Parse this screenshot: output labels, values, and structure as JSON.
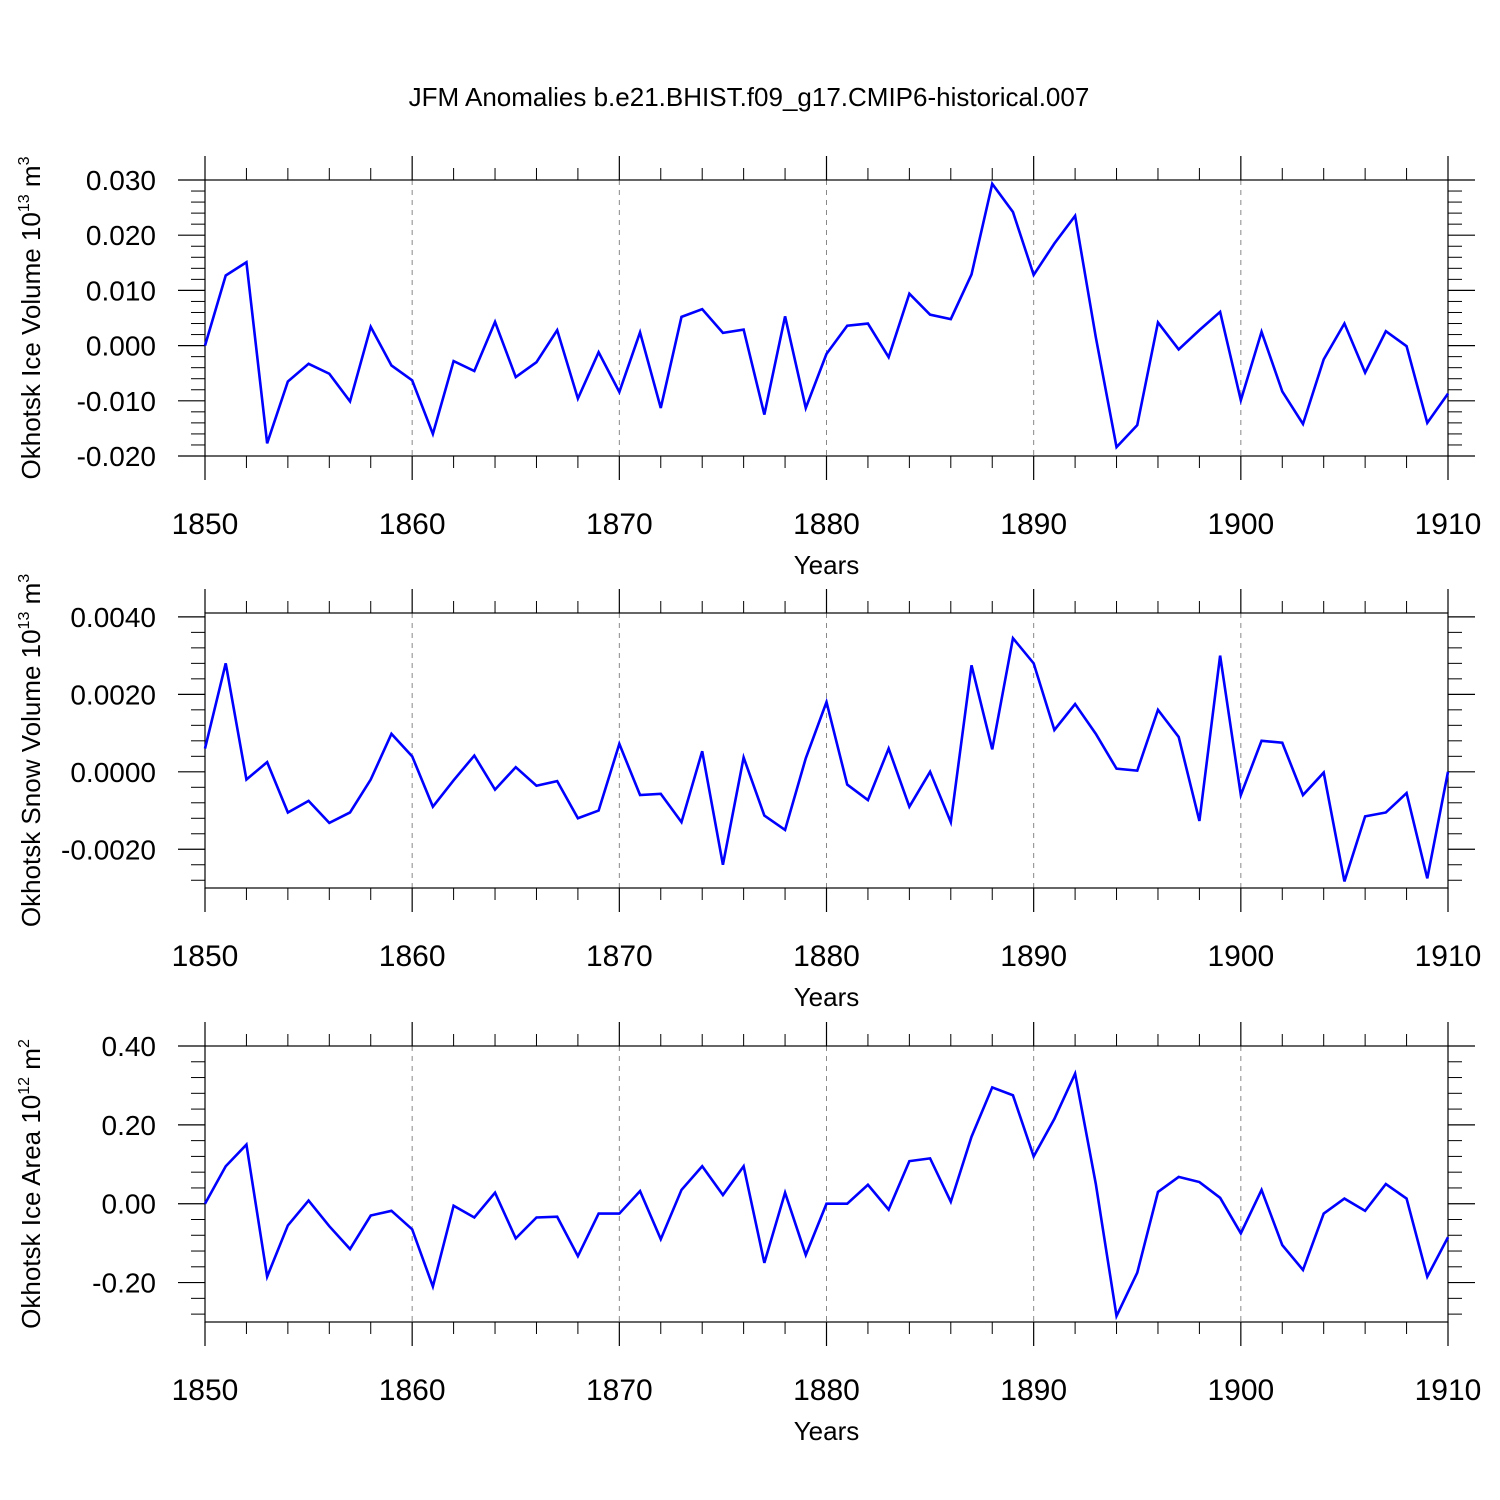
{
  "figure": {
    "title": "JFM Anomalies b.e21.BHIST.f09_g17.CMIP6-historical.007"
  },
  "chart_data": [
    {
      "type": "line",
      "xlabel": "Years",
      "ylabel": "Okhotsk Ice Volume 10",
      "ylabel_exp": "13",
      "ylabel_unit": " m",
      "ylabel_unit_exp": "3",
      "xlim": [
        1850,
        1910
      ],
      "ylim": [
        -0.02,
        0.03
      ],
      "xticks": [
        1850,
        1860,
        1870,
        1880,
        1890,
        1900,
        1910
      ],
      "xtick_labels": [
        "1850",
        "1860",
        "1870",
        "1880",
        "1890",
        "1900",
        "1910"
      ],
      "yticks": [
        -0.02,
        -0.01,
        0.0,
        0.01,
        0.02,
        0.03
      ],
      "ytick_labels": [
        "-0.020",
        "-0.010",
        "0.000",
        "0.010",
        "0.020",
        "0.030"
      ],
      "grid_x": [
        1860,
        1870,
        1880,
        1890,
        1900
      ],
      "color": "#0000ff",
      "x_start": 1850,
      "values": [
        0.0,
        0.0127,
        0.0151,
        -0.0177,
        -0.0065,
        -0.0033,
        -0.0051,
        -0.0101,
        0.0034,
        -0.0036,
        -0.0063,
        -0.016,
        -0.0028,
        -0.0046,
        0.0043,
        -0.0057,
        -0.003,
        0.0028,
        -0.0096,
        -0.0012,
        -0.0084,
        0.0024,
        -0.0113,
        0.0052,
        0.0066,
        0.0023,
        0.0029,
        -0.0125,
        0.0053,
        -0.0113,
        -0.0015,
        0.0036,
        0.004,
        -0.0021,
        0.0094,
        0.0056,
        0.0048,
        0.0129,
        0.0293,
        0.0242,
        0.0128,
        0.0185,
        0.0235,
        0.0015,
        -0.0184,
        -0.0144,
        0.0042,
        -0.0007,
        0.0028,
        0.0061,
        -0.0099,
        0.0025,
        -0.0083,
        -0.0142,
        -0.0025,
        0.004,
        -0.0049,
        0.0026,
        -0.0001,
        -0.014,
        -0.0087
      ]
    },
    {
      "type": "line",
      "xlabel": "Years",
      "ylabel": "Okhotsk Snow Volume 10",
      "ylabel_exp": "13",
      "ylabel_unit": " m",
      "ylabel_unit_exp": "3",
      "xlim": [
        1850,
        1910
      ],
      "ylim": [
        -0.003,
        0.0041
      ],
      "xticks": [
        1850,
        1860,
        1870,
        1880,
        1890,
        1900,
        1910
      ],
      "xtick_labels": [
        "1850",
        "1860",
        "1870",
        "1880",
        "1890",
        "1900",
        "1910"
      ],
      "yticks": [
        -0.002,
        0.0,
        0.002,
        0.004
      ],
      "ytick_labels": [
        "-0.0020",
        "0.0000",
        "0.0020",
        "0.0040"
      ],
      "grid_x": [
        1860,
        1870,
        1880,
        1890,
        1900
      ],
      "color": "#0000ff",
      "x_start": 1850,
      "values": [
        0.0006,
        0.0028,
        -0.0002,
        0.00025,
        -0.00105,
        -0.00075,
        -0.00132,
        -0.00105,
        -0.0002,
        0.00098,
        0.0004,
        -0.0009,
        -0.00022,
        0.00042,
        -0.00046,
        0.00012,
        -0.00036,
        -0.00024,
        -0.0012,
        -0.001,
        0.00072,
        -0.0006,
        -0.00057,
        -0.0013,
        0.00053,
        -0.0024,
        0.00037,
        -0.00113,
        -0.0015,
        0.00035,
        0.0018,
        -0.00033,
        -0.00073,
        0.0006,
        -0.0009,
        0.0,
        -0.0013,
        0.00275,
        0.00058,
        0.00345,
        0.0028,
        0.00108,
        0.00175,
        0.00098,
        8e-05,
        3e-05,
        0.0016,
        0.0009,
        -0.00127,
        0.003,
        -0.0006,
        0.0008,
        0.00075,
        -0.0006,
        -2e-05,
        -0.00283,
        -0.00115,
        -0.00105,
        -0.00055,
        -0.00275,
        0.0
      ]
    },
    {
      "type": "line",
      "xlabel": "Years",
      "ylabel": "Okhotsk Ice Area 10",
      "ylabel_exp": "12",
      "ylabel_unit": " m",
      "ylabel_unit_exp": "2",
      "xlim": [
        1850,
        1910
      ],
      "ylim": [
        -0.3,
        0.4
      ],
      "xticks": [
        1850,
        1860,
        1870,
        1880,
        1890,
        1900,
        1910
      ],
      "xtick_labels": [
        "1850",
        "1860",
        "1870",
        "1880",
        "1890",
        "1900",
        "1910"
      ],
      "yticks": [
        -0.2,
        0.0,
        0.2,
        0.4
      ],
      "ytick_labels": [
        "-0.20",
        "0.00",
        "0.20",
        "0.40"
      ],
      "grid_x": [
        1860,
        1870,
        1880,
        1890,
        1900
      ],
      "color": "#0000ff",
      "x_start": 1850,
      "values": [
        0.0,
        0.095,
        0.15,
        -0.185,
        -0.055,
        0.008,
        -0.057,
        -0.115,
        -0.03,
        -0.018,
        -0.065,
        -0.21,
        -0.005,
        -0.035,
        0.028,
        -0.088,
        -0.035,
        -0.033,
        -0.133,
        -0.025,
        -0.025,
        0.032,
        -0.09,
        0.035,
        0.095,
        0.022,
        0.095,
        -0.15,
        0.028,
        -0.13,
        0.0,
        0.0,
        0.048,
        -0.015,
        0.108,
        0.115,
        0.005,
        0.17,
        0.295,
        0.275,
        0.12,
        0.215,
        0.33,
        0.05,
        -0.285,
        -0.175,
        0.03,
        0.068,
        0.055,
        0.015,
        -0.075,
        0.035,
        -0.105,
        -0.168,
        -0.025,
        0.013,
        -0.018,
        0.05,
        0.013,
        -0.185,
        -0.085
      ]
    }
  ]
}
